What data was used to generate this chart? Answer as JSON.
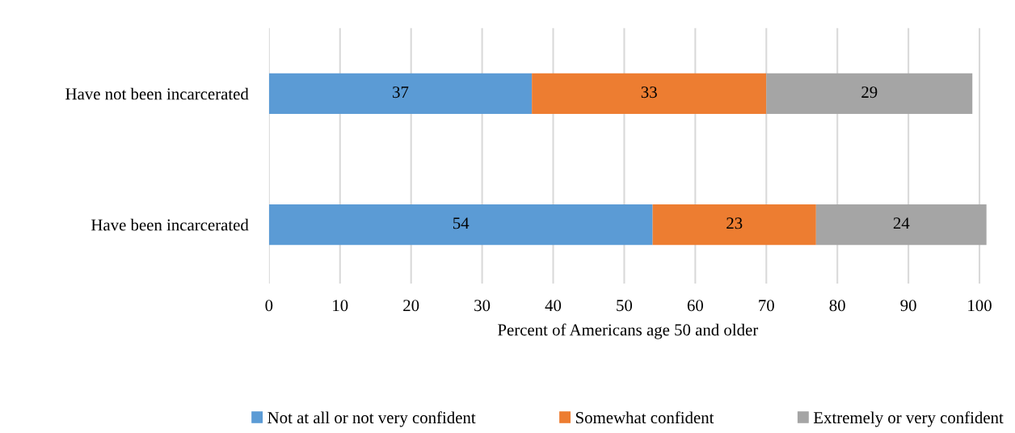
{
  "chart_data": {
    "type": "bar",
    "orientation": "horizontal",
    "stacked": true,
    "data_labels": true,
    "categories": [
      "Have not been incarcerated",
      "Have been incarcerated"
    ],
    "series": [
      {
        "name": "Not at all or not very confident",
        "color": "#5b9bd5",
        "values": [
          37,
          54
        ]
      },
      {
        "name": "Somewhat confident",
        "color": "#ed7d31",
        "values": [
          33,
          23
        ]
      },
      {
        "name": "Extremely or very confident",
        "color": "#a5a5a5",
        "values": [
          29,
          24
        ]
      }
    ],
    "xlabel": "Percent of Americans age 50 and older",
    "xlim": [
      0,
      101
    ],
    "xticks": [
      0,
      10,
      20,
      30,
      40,
      50,
      60,
      70,
      80,
      90,
      100
    ],
    "grid": "x",
    "legend": "bottom"
  }
}
